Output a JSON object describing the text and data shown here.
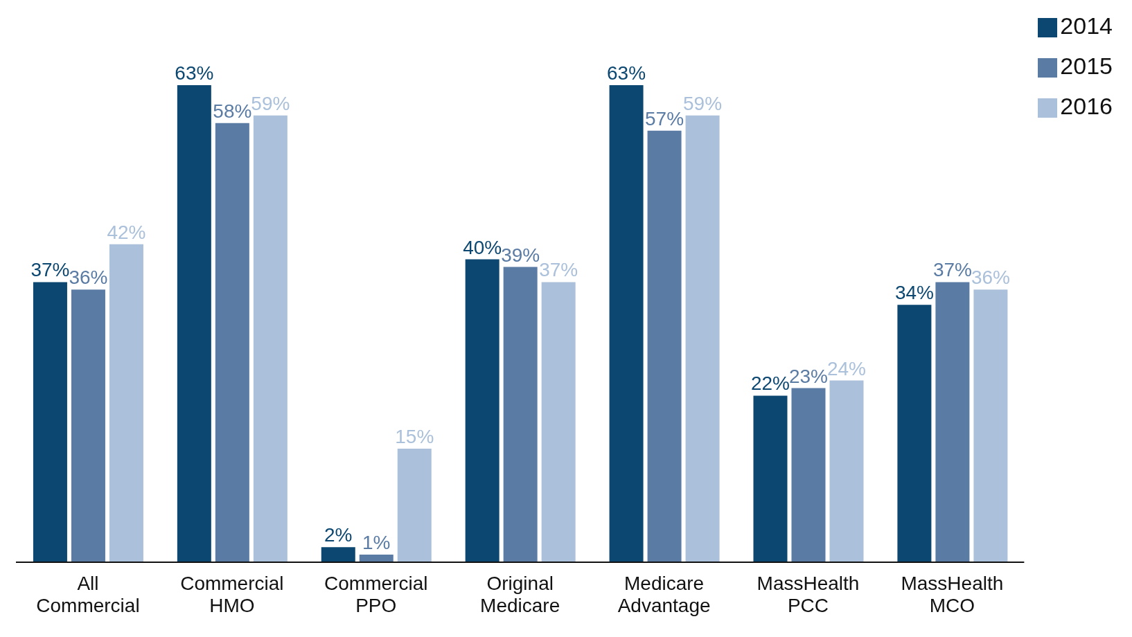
{
  "chart_data": {
    "type": "bar",
    "categories": [
      "All Commercial",
      "Commercial HMO",
      "Commercial PPO",
      "Original Medicare",
      "Medicare Advantage",
      "MassHealth PCC",
      "MassHealth MCO"
    ],
    "series": [
      {
        "name": "2014",
        "color": "#0b4770",
        "values": [
          37,
          63,
          2,
          40,
          63,
          22,
          34
        ],
        "value_labels": [
          "37%",
          "63%",
          "2%",
          "40%",
          "63%",
          "22%",
          "34%"
        ]
      },
      {
        "name": "2015",
        "color": "#5a7ba3",
        "values": [
          36,
          58,
          1,
          39,
          57,
          23,
          37
        ],
        "value_labels": [
          "36%",
          "58%",
          "1%",
          "39%",
          "57%",
          "23%",
          "37%"
        ]
      },
      {
        "name": "2016",
        "color": "#abc0da",
        "values": [
          42,
          59,
          15,
          37,
          59,
          24,
          36
        ],
        "value_labels": [
          "42%",
          "59%",
          "15%",
          "37%",
          "59%",
          "24%",
          "36%"
        ]
      }
    ],
    "legend": "top right",
    "grid": false
  }
}
